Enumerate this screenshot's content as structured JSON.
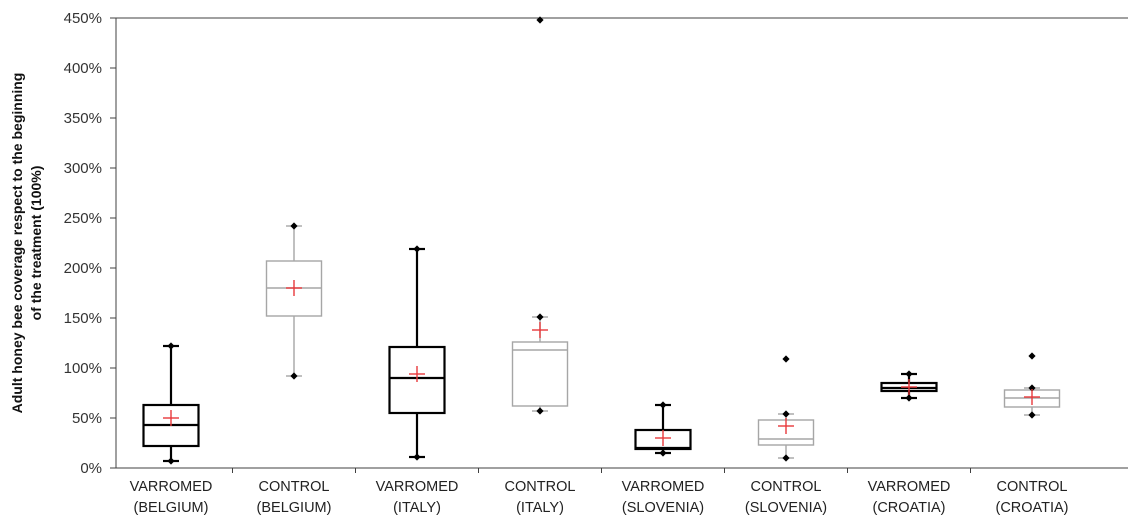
{
  "chart_data": {
    "type": "box",
    "title": "",
    "ylabel_lines": [
      "Adult honey bee coverage respect to the beginning",
      "of the treatment (100%)"
    ],
    "xlabel": "",
    "ylim": [
      0,
      450
    ],
    "yticks": [
      0,
      50,
      100,
      150,
      200,
      250,
      300,
      350,
      400,
      450
    ],
    "ytick_labels": [
      "0%",
      "50%",
      "100%",
      "150%",
      "200%",
      "250%",
      "300%",
      "350%",
      "400%",
      "450%"
    ],
    "grid": false,
    "mean_marker": "+",
    "colors": {
      "varromed": "#000000",
      "control": "#a6a6a6",
      "mean": "#e8393b",
      "axis": "#404040"
    },
    "categories": [
      {
        "line1": "VARROMED",
        "line2": "(BELGIUM)",
        "group": "varromed",
        "min": 7,
        "q1": 22,
        "median": 43,
        "q3": 63,
        "max": 122,
        "mean": 50,
        "outliers": []
      },
      {
        "line1": "CONTROL",
        "line2": "(BELGIUM)",
        "group": "control",
        "min": 92,
        "q1": 152,
        "median": 180,
        "q3": 207,
        "max": 242,
        "mean": 180,
        "outliers": []
      },
      {
        "line1": "VARROMED",
        "line2": "(ITALY)",
        "group": "varromed",
        "min": 11,
        "q1": 55,
        "median": 90,
        "q3": 121,
        "max": 219,
        "mean": 94,
        "outliers": []
      },
      {
        "line1": "CONTROL",
        "line2": "(ITALY)",
        "group": "control",
        "min": 57,
        "q1": 62,
        "median": 118,
        "q3": 126,
        "max": 151,
        "mean": 138,
        "outliers": [
          448
        ]
      },
      {
        "line1": "VARROMED",
        "line2": "(SLOVENIA)",
        "group": "varromed",
        "min": 15,
        "q1": 19,
        "median": 20,
        "q3": 38,
        "max": 63,
        "mean": 30,
        "outliers": []
      },
      {
        "line1": "CONTROL",
        "line2": "(SLOVENIA)",
        "group": "control",
        "min": 10,
        "q1": 23,
        "median": 29,
        "q3": 48,
        "max": 54,
        "mean": 42,
        "outliers": [
          109
        ]
      },
      {
        "line1": "VARROMED",
        "line2": "(CROATIA)",
        "group": "varromed",
        "min": 70,
        "q1": 77,
        "median": 80,
        "q3": 85,
        "max": 94,
        "mean": 81,
        "outliers": []
      },
      {
        "line1": "CONTROL",
        "line2": "(CROATIA)",
        "group": "control",
        "min": 53,
        "q1": 61,
        "median": 70,
        "q3": 78,
        "max": 80,
        "mean": 71,
        "outliers": [
          112
        ]
      }
    ]
  }
}
